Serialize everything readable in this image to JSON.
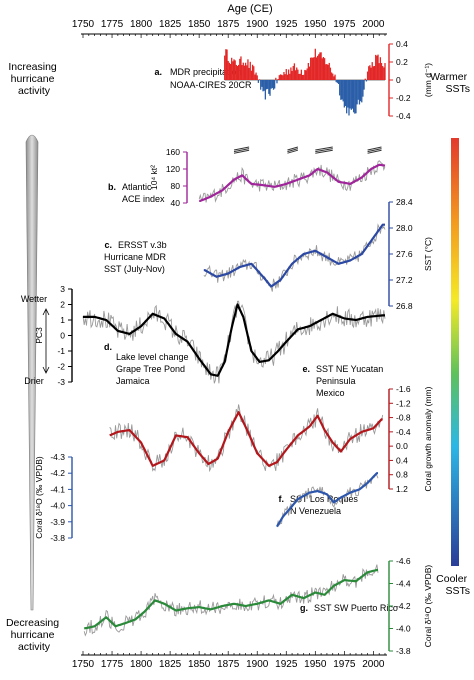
{
  "figure": {
    "x_axis_title": "Age (CE)",
    "x_range": [
      1750,
      2010
    ],
    "x_ticks": [
      1750,
      1775,
      1800,
      1825,
      1850,
      1875,
      1900,
      1925,
      1950,
      1975,
      2000
    ],
    "left_labels": {
      "top": [
        "Increasing",
        "hurricane",
        "activity"
      ],
      "bottom": [
        "Decreasing",
        "hurricane",
        "activity"
      ]
    },
    "right_labels": {
      "top": [
        "Warmer",
        "SSTs"
      ],
      "bottom": [
        "Cooler",
        "SSTs"
      ]
    },
    "colors": {
      "precip_pos": "#e32626",
      "precip_neg": "#2a5ea8",
      "ace": "#a0249a",
      "ersst": "#2b48a3",
      "lake": "#000000",
      "yucatan": "#b3171c",
      "roques": "#2c56ac",
      "puertorico": "#2a8a3a",
      "raw": "#9a9a9a"
    }
  },
  "chart_data": [
    {
      "type": "bar",
      "panel": "a",
      "label": [
        "MDR precipitation",
        "NOAA-CIRES 20CR"
      ],
      "ylabel": "(mm d⁻¹)",
      "ylim": [
        -0.4,
        0.4
      ],
      "yticks": [
        "0.4",
        "0.2",
        "0",
        "-0.2",
        "-0.4"
      ],
      "x_range": [
        1872,
        2010
      ],
      "key_points": [
        [
          1872,
          0.32
        ],
        [
          1880,
          0.18
        ],
        [
          1890,
          0.22
        ],
        [
          1900,
          0.05
        ],
        [
          1905,
          -0.18
        ],
        [
          1912,
          -0.12
        ],
        [
          1920,
          0.05
        ],
        [
          1930,
          0.14
        ],
        [
          1940,
          0.1
        ],
        [
          1950,
          0.3
        ],
        [
          1960,
          0.2
        ],
        [
          1968,
          0.02
        ],
        [
          1975,
          -0.3
        ],
        [
          1983,
          -0.38
        ],
        [
          1990,
          -0.2
        ],
        [
          1995,
          0.1
        ],
        [
          2003,
          0.25
        ],
        [
          2010,
          0.15
        ]
      ]
    },
    {
      "type": "line",
      "panel": "b",
      "label": [
        "Atlantic",
        "ACE index"
      ],
      "ylabel": "10⁴ kt²",
      "ylim": [
        40,
        160
      ],
      "yticks": [
        "160",
        "120",
        "80",
        "40"
      ],
      "x_range": [
        1850,
        2010
      ],
      "key_points": [
        [
          1851,
          45
        ],
        [
          1860,
          55
        ],
        [
          1870,
          70
        ],
        [
          1880,
          95
        ],
        [
          1887,
          105
        ],
        [
          1895,
          85
        ],
        [
          1905,
          82
        ],
        [
          1915,
          78
        ],
        [
          1925,
          85
        ],
        [
          1935,
          95
        ],
        [
          1945,
          105
        ],
        [
          1952,
          120
        ],
        [
          1960,
          112
        ],
        [
          1970,
          90
        ],
        [
          1980,
          85
        ],
        [
          1990,
          100
        ],
        [
          1998,
          120
        ],
        [
          2005,
          130
        ],
        [
          2010,
          128
        ]
      ],
      "bars": [
        [
          1880,
          1893
        ],
        [
          1926,
          1935
        ],
        [
          1950,
          1965
        ],
        [
          1995,
          2007
        ]
      ]
    },
    {
      "type": "line",
      "panel": "c",
      "label": [
        "ERSST v.3b",
        "Hurricane MDR",
        "SST (July-Nov)"
      ],
      "ylabel": "SST (°C)",
      "ylim": [
        26.8,
        28.4
      ],
      "yticks": [
        "28.4",
        "28.0",
        "27.6",
        "27.2",
        "26.8"
      ],
      "x_range": [
        1854,
        2010
      ],
      "key_points": [
        [
          1855,
          27.35
        ],
        [
          1865,
          27.25
        ],
        [
          1875,
          27.3
        ],
        [
          1885,
          27.4
        ],
        [
          1895,
          27.45
        ],
        [
          1905,
          27.25
        ],
        [
          1912,
          27.1
        ],
        [
          1920,
          27.2
        ],
        [
          1930,
          27.45
        ],
        [
          1940,
          27.6
        ],
        [
          1950,
          27.65
        ],
        [
          1960,
          27.55
        ],
        [
          1970,
          27.45
        ],
        [
          1980,
          27.5
        ],
        [
          1990,
          27.6
        ],
        [
          2000,
          27.85
        ],
        [
          2008,
          28.05
        ]
      ]
    },
    {
      "type": "line",
      "panel": "d",
      "label": [
        "Lake level change",
        "Grape Tree Pond",
        "Jamaica"
      ],
      "ylabel": "PC3",
      "wetter_label": "Wetter",
      "drier_label": "Drier",
      "ylim": [
        -3,
        3
      ],
      "yticks": [
        "3",
        "2",
        "1",
        "0",
        "-1",
        "-2",
        "-3"
      ],
      "x_range": [
        1750,
        2010
      ],
      "key_points": [
        [
          1750,
          1.2
        ],
        [
          1760,
          1.2
        ],
        [
          1770,
          1.0
        ],
        [
          1780,
          0.3
        ],
        [
          1790,
          0.1
        ],
        [
          1800,
          0.6
        ],
        [
          1810,
          1.4
        ],
        [
          1820,
          1.1
        ],
        [
          1830,
          0.1
        ],
        [
          1840,
          -0.4
        ],
        [
          1850,
          -1.5
        ],
        [
          1860,
          -2.5
        ],
        [
          1866,
          -2.6
        ],
        [
          1872,
          -1.7
        ],
        [
          1878,
          0.5
        ],
        [
          1883,
          2.0
        ],
        [
          1888,
          1.2
        ],
        [
          1895,
          -1.0
        ],
        [
          1902,
          -1.7
        ],
        [
          1910,
          -1.6
        ],
        [
          1918,
          -1.0
        ],
        [
          1925,
          -0.4
        ],
        [
          1935,
          0.4
        ],
        [
          1945,
          0.6
        ],
        [
          1955,
          1.0
        ],
        [
          1965,
          1.4
        ],
        [
          1975,
          1.1
        ],
        [
          1985,
          1.0
        ],
        [
          1995,
          1.2
        ],
        [
          2008,
          1.3
        ]
      ]
    },
    {
      "type": "line",
      "panel": "e",
      "label": [
        "SST NE Yucatan",
        "Peninsula",
        "Mexico"
      ],
      "ylabel": "Coral growth anomaly (mm)",
      "ylim": [
        -1.6,
        1.2
      ],
      "inverted": true,
      "yticks": [
        "-1.6",
        "-1.2",
        "-0.8",
        "-0.4",
        "0.0",
        "0.4",
        "0.8",
        "1.2"
      ],
      "x_range": [
        1773,
        2008
      ],
      "key_points": [
        [
          1773,
          -0.3
        ],
        [
          1780,
          -0.4
        ],
        [
          1790,
          -0.45
        ],
        [
          1800,
          -0.1
        ],
        [
          1810,
          0.55
        ],
        [
          1820,
          0.4
        ],
        [
          1830,
          -0.3
        ],
        [
          1840,
          -0.25
        ],
        [
          1850,
          0.2
        ],
        [
          1858,
          0.5
        ],
        [
          1866,
          0.35
        ],
        [
          1875,
          -0.4
        ],
        [
          1884,
          -0.95
        ],
        [
          1892,
          -0.4
        ],
        [
          1900,
          0.2
        ],
        [
          1910,
          0.55
        ],
        [
          1917,
          0.45
        ],
        [
          1925,
          0.1
        ],
        [
          1935,
          -0.3
        ],
        [
          1945,
          -0.55
        ],
        [
          1952,
          -0.85
        ],
        [
          1958,
          -0.45
        ],
        [
          1965,
          -0.1
        ],
        [
          1972,
          0.15
        ],
        [
          1980,
          -0.2
        ],
        [
          1990,
          -0.4
        ],
        [
          2000,
          -0.5
        ],
        [
          2007,
          -0.75
        ]
      ]
    },
    {
      "type": "line",
      "panel": "f",
      "label": [
        "SST Los Roques",
        "N Venezuela"
      ],
      "ylabel": "Coral δ¹⁸O (‰ VPDB)",
      "ylim": [
        -4.3,
        -3.8
      ],
      "inverted": true,
      "yticks": [
        "-4.3",
        "-4.2",
        "-4.1",
        "-4.0",
        "-3.9",
        "-3.8"
      ],
      "x_range": [
        1917,
        2004
      ],
      "key_points": [
        [
          1917,
          -3.87
        ],
        [
          1922,
          -3.93
        ],
        [
          1928,
          -3.98
        ],
        [
          1935,
          -4.04
        ],
        [
          1945,
          -4.08
        ],
        [
          1952,
          -4.09
        ],
        [
          1960,
          -4.07
        ],
        [
          1966,
          -4.02
        ],
        [
          1972,
          -4.05
        ],
        [
          1980,
          -4.08
        ],
        [
          1988,
          -4.1
        ],
        [
          1995,
          -4.14
        ],
        [
          2003,
          -4.2
        ]
      ]
    },
    {
      "type": "line",
      "panel": "g",
      "label": [
        "SST SW Puerto Rico"
      ],
      "ylabel": "Coral δ¹⁸O (‰ VPDB)",
      "ylim": [
        -4.6,
        -3.8
      ],
      "inverted": true,
      "yticks": [
        "-4.6",
        "-4.4",
        "-4.2",
        "-4.0",
        "-3.8"
      ],
      "x_range": [
        1751,
        2004
      ],
      "key_points": [
        [
          1751,
          -4.0
        ],
        [
          1760,
          -4.02
        ],
        [
          1770,
          -4.1
        ],
        [
          1778,
          -4.02
        ],
        [
          1787,
          -4.05
        ],
        [
          1795,
          -4.08
        ],
        [
          1803,
          -4.15
        ],
        [
          1812,
          -4.25
        ],
        [
          1820,
          -4.22
        ],
        [
          1830,
          -4.16
        ],
        [
          1840,
          -4.18
        ],
        [
          1850,
          -4.19
        ],
        [
          1860,
          -4.17
        ],
        [
          1870,
          -4.2
        ],
        [
          1880,
          -4.22
        ],
        [
          1890,
          -4.2
        ],
        [
          1900,
          -4.22
        ],
        [
          1910,
          -4.25
        ],
        [
          1920,
          -4.22
        ],
        [
          1930,
          -4.3
        ],
        [
          1940,
          -4.27
        ],
        [
          1950,
          -4.32
        ],
        [
          1958,
          -4.3
        ],
        [
          1966,
          -4.38
        ],
        [
          1975,
          -4.43
        ],
        [
          1985,
          -4.42
        ],
        [
          1995,
          -4.5
        ],
        [
          2003,
          -4.52
        ]
      ]
    }
  ]
}
